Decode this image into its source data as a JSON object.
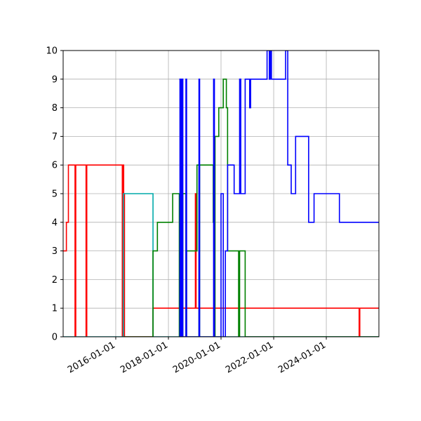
{
  "chart_data": {
    "type": "line",
    "title": "",
    "xlabel": "",
    "ylabel": "",
    "xlim": [
      "2014-01-01",
      "2025-12-31"
    ],
    "ylim": [
      0,
      10
    ],
    "grid": true,
    "legend": "none",
    "x_ticks": [
      "2016-01-01",
      "2018-01-01",
      "2020-01-01",
      "2022-01-01",
      "2024-01-01"
    ],
    "y_ticks": [
      "0",
      "1",
      "2",
      "3",
      "4",
      "5",
      "6",
      "7",
      "8",
      "9",
      "10"
    ],
    "series": [
      {
        "color": "#ff0000",
        "interpolation": "step-post",
        "points": [
          [
            "2014-01-01",
            3
          ],
          [
            "2014-02-15",
            4
          ],
          [
            "2014-03-15",
            6
          ],
          [
            "2014-06-15",
            0
          ],
          [
            "2014-06-25",
            6
          ],
          [
            "2014-11-15",
            0
          ],
          [
            "2014-11-25",
            6
          ],
          [
            "2016-04-01",
            0
          ],
          [
            "2016-04-10",
            6
          ],
          [
            "2016-04-20",
            5
          ],
          [
            "2016-05-01",
            0
          ],
          [
            "2017-06-01",
            1
          ],
          [
            "2019-01-10",
            5
          ],
          [
            "2019-01-20",
            1
          ],
          [
            "2025-04-01",
            0
          ],
          [
            "2025-04-10",
            1
          ],
          [
            "2025-12-31",
            1
          ]
        ]
      },
      {
        "color": "#00aaaa",
        "interpolation": "step-post",
        "points": [
          [
            "2014-01-01",
            0
          ],
          [
            "2016-04-15",
            5
          ],
          [
            "2017-06-01",
            0
          ],
          [
            "2025-12-31",
            0
          ]
        ]
      },
      {
        "color": "#008000",
        "interpolation": "step-post",
        "points": [
          [
            "2016-04-20",
            0
          ],
          [
            "2017-06-01",
            3
          ],
          [
            "2017-08-01",
            4
          ],
          [
            "2018-03-01",
            5
          ],
          [
            "2018-06-01",
            0
          ],
          [
            "2018-06-10",
            5
          ],
          [
            "2018-06-20",
            0
          ],
          [
            "2018-07-01",
            5
          ],
          [
            "2018-07-10",
            0
          ],
          [
            "2018-07-20",
            5
          ],
          [
            "2018-09-01",
            0
          ],
          [
            "2018-09-10",
            3
          ],
          [
            "2019-02-01",
            6
          ],
          [
            "2019-03-01",
            0
          ],
          [
            "2019-03-10",
            6
          ],
          [
            "2019-09-15",
            4
          ],
          [
            "2019-10-01",
            0
          ],
          [
            "2019-10-10",
            7
          ],
          [
            "2019-12-01",
            8
          ],
          [
            "2020-02-01",
            9
          ],
          [
            "2020-03-15",
            8
          ],
          [
            "2020-04-01",
            3
          ],
          [
            "2020-09-01",
            0
          ],
          [
            "2020-09-15",
            3
          ],
          [
            "2020-12-01",
            0
          ],
          [
            "2025-12-31",
            0
          ]
        ]
      },
      {
        "color": "#0000ff",
        "interpolation": "step-post",
        "points": [
          [
            "2018-06-01",
            9
          ],
          [
            "2018-06-10",
            0
          ],
          [
            "2018-06-20",
            9
          ],
          [
            "2018-07-01",
            0
          ],
          [
            "2018-07-10",
            9
          ],
          [
            "2018-07-20",
            0
          ],
          [
            "2018-09-01",
            9
          ],
          [
            "2018-09-10",
            0
          ],
          [
            "2019-03-01",
            9
          ],
          [
            "2019-03-10",
            0
          ],
          [
            "2019-09-20",
            9
          ],
          [
            "2019-10-01",
            0
          ],
          [
            "2020-01-01",
            5
          ],
          [
            "2020-02-01",
            0
          ],
          [
            "2020-03-01",
            3
          ],
          [
            "2020-04-01",
            6
          ],
          [
            "2020-07-01",
            5
          ],
          [
            "2020-09-15",
            9
          ],
          [
            "2020-10-01",
            5
          ],
          [
            "2020-12-01",
            9
          ],
          [
            "2021-02-01",
            8
          ],
          [
            "2021-02-15",
            9
          ],
          [
            "2021-10-01",
            10
          ],
          [
            "2021-11-01",
            9
          ],
          [
            "2021-11-15",
            10
          ],
          [
            "2021-12-01",
            9
          ],
          [
            "2022-06-15",
            10
          ],
          [
            "2022-07-15",
            6
          ],
          [
            "2022-09-01",
            5
          ],
          [
            "2022-11-01",
            7
          ],
          [
            "2023-05-01",
            4
          ],
          [
            "2023-07-15",
            5
          ],
          [
            "2024-07-01",
            4
          ],
          [
            "2025-12-31",
            4
          ]
        ]
      }
    ]
  }
}
